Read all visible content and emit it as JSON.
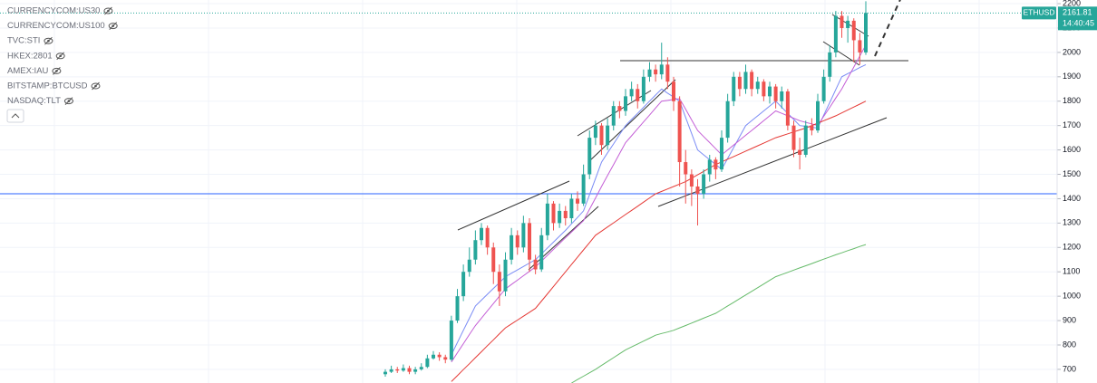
{
  "chart_data": {
    "type": "candlestick",
    "symbol": "ETHUSD",
    "last_time": "14:40:45",
    "compare_symbols": [
      "CURRENCYCOM:US30",
      "CURRENCYCOM:US100",
      "TVC:STI",
      "HKEX:2801",
      "AMEX:IAU",
      "BITSTAMP:BTCUSD",
      "NASDAQ:TLT"
    ],
    "ylim": [
      644,
      2215
    ],
    "yticks": [
      700,
      800,
      900,
      1000,
      1100,
      1200,
      1300,
      1400,
      1500,
      1600,
      1700,
      1800,
      1900,
      2000,
      2100,
      2200
    ],
    "grid": true,
    "up_color": "#26a69a",
    "down_color": "#ef5350",
    "candles": {
      "open": [
        680,
        690,
        700,
        695,
        705,
        690,
        700,
        710,
        745,
        760,
        750,
        740,
        900,
        1000,
        1100,
        1150,
        1230,
        1280,
        1200,
        1100,
        1020,
        1150,
        1250,
        1200,
        1300,
        1150,
        1110,
        1250,
        1380,
        1300,
        1350,
        1320,
        1400,
        1380,
        1500,
        1650,
        1700,
        1620,
        1700,
        1780,
        1760,
        1820,
        1850,
        1800,
        1900,
        1930,
        1910,
        1950,
        1880,
        1800,
        1550,
        1500,
        1450,
        1420,
        1500,
        1560,
        1520,
        1650,
        1800,
        1900,
        1850,
        1920,
        1850,
        1880,
        1820,
        1860,
        1800,
        1840,
        1700,
        1600,
        1580,
        1700,
        1680,
        1800,
        1900,
        2000,
        2150,
        2100,
        2130,
        2050,
        2000
      ],
      "high": [
        700,
        715,
        710,
        720,
        715,
        710,
        725,
        760,
        775,
        770,
        760,
        920,
        1030,
        1130,
        1200,
        1270,
        1300,
        1290,
        1220,
        1130,
        1180,
        1280,
        1270,
        1330,
        1320,
        1170,
        1280,
        1420,
        1390,
        1380,
        1370,
        1420,
        1430,
        1540,
        1680,
        1720,
        1710,
        1730,
        1800,
        1800,
        1850,
        1880,
        1870,
        1930,
        1960,
        1950,
        2040,
        1980,
        1900,
        1820,
        1600,
        1520,
        1480,
        1520,
        1580,
        1570,
        1680,
        1830,
        1920,
        1920,
        1950,
        1930,
        1900,
        1890,
        1880,
        1870,
        1860,
        1850,
        1720,
        1650,
        1720,
        1730,
        1830,
        1930,
        2030,
        2170,
        2170,
        2150,
        2140,
        2080,
        2210
      ],
      "low": [
        670,
        685,
        685,
        690,
        680,
        680,
        695,
        705,
        740,
        735,
        725,
        735,
        890,
        980,
        1080,
        1130,
        1210,
        1170,
        1050,
        960,
        1000,
        1130,
        1170,
        1180,
        1100,
        1090,
        1100,
        1230,
        1270,
        1280,
        1290,
        1300,
        1350,
        1370,
        1480,
        1620,
        1580,
        1600,
        1680,
        1730,
        1740,
        1800,
        1770,
        1790,
        1880,
        1880,
        1890,
        1850,
        1760,
        1450,
        1380,
        1370,
        1290,
        1400,
        1470,
        1480,
        1510,
        1630,
        1780,
        1820,
        1830,
        1820,
        1830,
        1800,
        1790,
        1770,
        1770,
        1680,
        1570,
        1520,
        1570,
        1660,
        1670,
        1790,
        1880,
        1980,
        2060,
        2040,
        1960,
        1950,
        1990
      ],
      "close": [
        690,
        700,
        695,
        705,
        690,
        700,
        710,
        745,
        760,
        750,
        740,
        900,
        1000,
        1100,
        1150,
        1230,
        1280,
        1200,
        1100,
        1020,
        1150,
        1250,
        1200,
        1300,
        1150,
        1110,
        1250,
        1380,
        1300,
        1350,
        1320,
        1400,
        1380,
        1500,
        1650,
        1700,
        1620,
        1700,
        1780,
        1760,
        1820,
        1850,
        1800,
        1900,
        1930,
        1910,
        1950,
        1880,
        1800,
        1550,
        1500,
        1450,
        1420,
        1500,
        1560,
        1520,
        1650,
        1800,
        1900,
        1850,
        1920,
        1850,
        1880,
        1820,
        1860,
        1800,
        1840,
        1700,
        1600,
        1580,
        1700,
        1680,
        1800,
        1900,
        2000,
        2150,
        2100,
        2130,
        2050,
        2000,
        2161.81
      ]
    },
    "lines": [
      {
        "color": "#7b8cf5",
        "values": [
          null,
          null,
          null,
          null,
          null,
          null,
          null,
          null,
          null,
          null,
          null,
          760,
          810,
          860,
          910,
          960,
          984,
          1008,
          1032,
          1056,
          1080,
          1094,
          1108,
          1122,
          1136,
          1150,
          1174,
          1198,
          1222,
          1246,
          1270,
          1297,
          1323,
          1350,
          1417,
          1483,
          1550,
          1588,
          1625,
          1663,
          1700,
          1725,
          1750,
          1775,
          1800,
          1825,
          1850,
          1833,
          1817,
          1800,
          1733,
          1667,
          1600,
          1580,
          1560,
          1540,
          1520,
          1565,
          1610,
          1655,
          1700,
          1720,
          1740,
          1760,
          1780,
          1800,
          1775,
          1750,
          1725,
          1700,
          1697,
          1693,
          1690,
          1743,
          1795,
          1848,
          1900,
          1913,
          1925,
          1938,
          1950
        ]
      },
      {
        "color": "#c45fd6",
        "values": [
          null,
          null,
          null,
          null,
          null,
          null,
          null,
          null,
          null,
          null,
          null,
          730,
          768,
          805,
          843,
          880,
          910,
          940,
          970,
          1000,
          1030,
          1048,
          1066,
          1084,
          1102,
          1120,
          1144,
          1168,
          1192,
          1216,
          1240,
          1263,
          1287,
          1310,
          1357,
          1403,
          1450,
          1495,
          1540,
          1585,
          1630,
          1658,
          1687,
          1715,
          1743,
          1772,
          1800,
          1803,
          1807,
          1810,
          1767,
          1723,
          1680,
          1655,
          1630,
          1605,
          1580,
          1600,
          1620,
          1640,
          1660,
          1680,
          1700,
          1720,
          1740,
          1760,
          1750,
          1740,
          1730,
          1720,
          1713,
          1707,
          1700,
          1738,
          1775,
          1813,
          1850,
          1895,
          1940,
          1985,
          2030
        ]
      },
      {
        "color": "#e53935",
        "values": [
          null,
          null,
          null,
          null,
          null,
          null,
          null,
          null,
          null,
          null,
          null,
          650,
          674,
          699,
          723,
          748,
          772,
          797,
          821,
          846,
          870,
          886,
          902,
          918,
          934,
          950,
          980,
          1010,
          1040,
          1070,
          1100,
          1130,
          1160,
          1190,
          1220,
          1250,
          1267,
          1284,
          1301,
          1318,
          1335,
          1352,
          1369,
          1386,
          1403,
          1420,
          1430,
          1440,
          1450,
          1460,
          1470,
          1484,
          1498,
          1512,
          1526,
          1540,
          1551,
          1562,
          1573,
          1584,
          1595,
          1606,
          1617,
          1628,
          1639,
          1650,
          1658,
          1666,
          1674,
          1682,
          1690,
          1700,
          1710,
          1720,
          1730,
          1740,
          1752,
          1764,
          1776,
          1788,
          1800
        ]
      },
      {
        "color": "#66bb6a",
        "values": [
          null,
          null,
          null,
          null,
          null,
          null,
          null,
          null,
          null,
          null,
          null,
          null,
          null,
          null,
          null,
          null,
          null,
          null,
          null,
          null,
          null,
          null,
          null,
          null,
          null,
          null,
          null,
          null,
          null,
          null,
          null,
          644,
          658,
          672,
          686,
          700,
          716,
          732,
          748,
          764,
          780,
          792,
          804,
          816,
          828,
          840,
          847,
          853,
          860,
          870,
          880,
          890,
          900,
          910,
          920,
          930,
          945,
          960,
          975,
          990,
          1005,
          1020,
          1035,
          1050,
          1065,
          1080,
          1089,
          1098,
          1107,
          1116,
          1125,
          1134,
          1143,
          1152,
          1161,
          1170,
          1178,
          1187,
          1195,
          1204,
          1212
        ]
      }
    ]
  }
}
